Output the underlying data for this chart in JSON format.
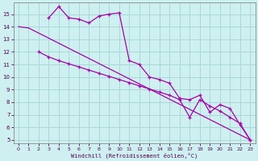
{
  "xlabel": "Windchill (Refroidissement éolien,°C)",
  "background_color": "#cef0f0",
  "grid_color": "#aad8d8",
  "line_color": "#aa00aa",
  "xlim": [
    -0.5,
    23.5
  ],
  "ylim": [
    4.7,
    15.9
  ],
  "yticks": [
    5,
    6,
    7,
    8,
    9,
    10,
    11,
    12,
    13,
    14,
    15
  ],
  "xticks": [
    0,
    1,
    2,
    3,
    4,
    5,
    6,
    7,
    8,
    9,
    10,
    11,
    12,
    13,
    14,
    15,
    16,
    17,
    18,
    19,
    20,
    21,
    22,
    23
  ],
  "line1_x": [
    0,
    1,
    23
  ],
  "line1_y": [
    14.0,
    13.9,
    5.0
  ],
  "line2_x": [
    3,
    4,
    5,
    6,
    7,
    8,
    9,
    10,
    11,
    12,
    13,
    14,
    15,
    16,
    17,
    18,
    19,
    20,
    21,
    22,
    23
  ],
  "line2_y": [
    14.7,
    15.6,
    14.7,
    14.6,
    14.3,
    14.85,
    15.0,
    15.1,
    11.3,
    11.0,
    10.0,
    9.8,
    9.5,
    8.3,
    8.2,
    8.55,
    7.2,
    7.8,
    7.5,
    6.2,
    5.0
  ],
  "line3_x": [
    2,
    3,
    4,
    5,
    6,
    7,
    8,
    9,
    10,
    11,
    12,
    13,
    14,
    15,
    16,
    17,
    18,
    19,
    20,
    21,
    22,
    23
  ],
  "line3_y": [
    12.0,
    11.6,
    11.3,
    11.05,
    10.8,
    10.55,
    10.3,
    10.05,
    9.8,
    9.55,
    9.3,
    9.05,
    8.8,
    8.55,
    8.2,
    6.8,
    8.2,
    7.7,
    7.3,
    6.8,
    6.3,
    5.0
  ]
}
